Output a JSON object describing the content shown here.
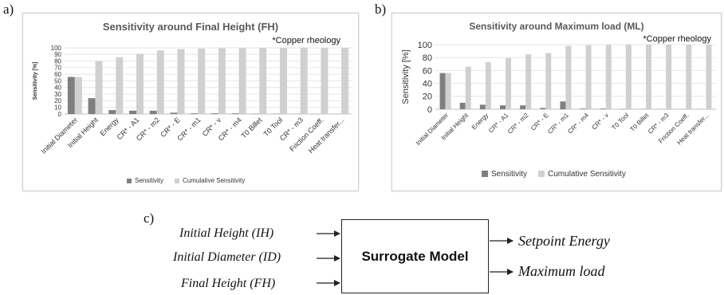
{
  "panels": {
    "a": "a)",
    "b": "b)",
    "c": "c)"
  },
  "colors": {
    "sensitivity": "#7f7f7f",
    "cumulative": "#d0d0d0",
    "grid": "#e6e6e6",
    "title": "#595959"
  },
  "chart_data": [
    {
      "type": "bar",
      "title": "Sensitivity around Final Height (FH)",
      "annotation": "*Copper rheology",
      "xlabel": "",
      "ylabel": "Sensitivity [%]",
      "ylim": [
        0,
        100
      ],
      "yticks": [
        0,
        10,
        20,
        30,
        40,
        50,
        60,
        70,
        80,
        90,
        100
      ],
      "grid": true,
      "legend_position": "bottom",
      "categories": [
        "Initial Diameter",
        "Initial Height",
        "Energy",
        "CR* - A1",
        "CR* - m2",
        "CR* - E",
        "CR* - m1",
        "CR* - v",
        "CR* - m4",
        "T0 Billet",
        "T0 Tool",
        "CR* - m3",
        "Friction Coeff.",
        "Heat transfer..."
      ],
      "series": [
        {
          "name": "Sensitivity",
          "values": [
            56,
            24,
            6,
            5,
            5,
            2,
            1,
            1,
            1,
            0.5,
            0.3,
            0.2,
            0.1,
            0.1
          ]
        },
        {
          "name": "Cumulative Sensitivity",
          "values": [
            56,
            80,
            86,
            91,
            96,
            98,
            99,
            99.5,
            99.8,
            100,
            100,
            100,
            100,
            100
          ]
        }
      ]
    },
    {
      "type": "bar",
      "title": "Sensitivity around Maximum load (ML)",
      "annotation": "*Copper rheology",
      "xlabel": "",
      "ylabel": "Sensitivity [%]",
      "ylim": [
        0,
        100
      ],
      "yticks": [
        0,
        20,
        40,
        60,
        80,
        100
      ],
      "grid": true,
      "legend_position": "bottom",
      "categories": [
        "Initial Diameter",
        "Initial Height",
        "Energy",
        "CR* - A1",
        "CR* - m2",
        "CR* - E",
        "CR* - m1",
        "CR* - m4",
        "CR* - v",
        "T0 Tool",
        "T0 Billet",
        "CR* - m3",
        "Friction Coeff.",
        "Heat transfer..."
      ],
      "series": [
        {
          "name": "Sensitivity",
          "values": [
            56,
            10,
            7,
            6,
            6,
            2,
            12,
            1,
            1,
            0.5,
            0.3,
            0.2,
            0.1,
            0.1
          ]
        },
        {
          "name": "Cumulative Sensitivity",
          "values": [
            56,
            66,
            73,
            79,
            85,
            87,
            98,
            99,
            99.5,
            100,
            100,
            100,
            100,
            100
          ]
        }
      ]
    }
  ],
  "diagram": {
    "inputs": [
      "Initial Height (IH)",
      "Initial Diameter (ID)",
      "Final Height (FH)"
    ],
    "model_label": "Surrogate Model",
    "outputs": [
      "Setpoint Energy",
      "Maximum load"
    ]
  }
}
